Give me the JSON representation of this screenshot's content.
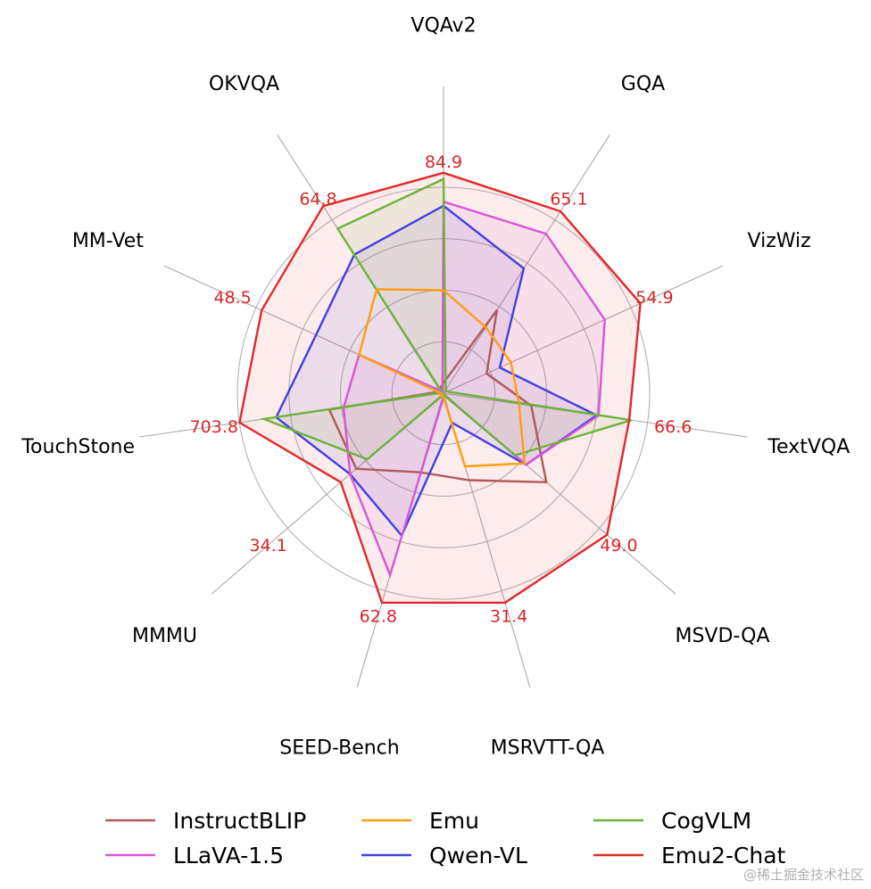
{
  "chart_data": {
    "type": "radar",
    "axes": [
      "VQAv2",
      "GQA",
      "VizWiz",
      "TextVQA",
      "MSVD-QA",
      "MSRVTT-QA",
      "SEED-Bench",
      "MMMU",
      "TouchStone",
      "MM-Vet",
      "OKVQA"
    ],
    "max_labels": [
      "84.9",
      "65.1",
      "54.9",
      "66.6",
      "49.0",
      "31.4",
      "62.8",
      "34.1",
      "703.8",
      "48.5",
      "64.8"
    ],
    "rings": [
      0.25,
      0.5,
      0.75,
      1.0
    ],
    "series": [
      {
        "name": "InstructBLIP",
        "color": "#b05a5a",
        "fill": false,
        "values": [
          0.05,
          0.48,
          0.23,
          0.43,
          0.66,
          0.44,
          0.4,
          0.56,
          0.56,
          0.02,
          0.03
        ]
      },
      {
        "name": "Qwen-VL",
        "color": "#4040e0",
        "fill": true,
        "values": [
          0.91,
          0.72,
          0.3,
          0.75,
          0.53,
          0.15,
          0.72,
          0.6,
          0.82,
          0.68,
          0.8
        ]
      },
      {
        "name": "LLaVA-1.5",
        "color": "#d855d8",
        "fill": true,
        "values": [
          0.93,
          0.92,
          0.86,
          0.76,
          0.53,
          0.01,
          0.92,
          0.6,
          0.49,
          0.45,
          0.01
        ]
      },
      {
        "name": "CogVLM",
        "color": "#6bb33a",
        "fill": true,
        "values": [
          1.04,
          0.02,
          0.02,
          0.92,
          0.46,
          0.01,
          0.01,
          0.49,
          0.88,
          0.01,
          0.95
        ]
      },
      {
        "name": "Emu",
        "color": "#ff9e10",
        "fill": false,
        "values": [
          0.5,
          0.38,
          0.36,
          0.37,
          0.52,
          0.37,
          0.01,
          0.02,
          0.01,
          0.45,
          0.6
        ]
      },
      {
        "name": "Emu2-Chat",
        "color": "#e02a2a",
        "fill": true,
        "values": [
          1.07,
          1.05,
          1.05,
          0.91,
          1.05,
          1.06,
          1.06,
          0.66,
          1.0,
          0.97,
          1.08
        ]
      }
    ],
    "legend_order": [
      "InstructBLIP",
      "LLaVA-1.5",
      "Emu",
      "Qwen-VL",
      "CogVLM",
      "Emu2-Chat"
    ],
    "legend_position": "bottom",
    "grid": true
  },
  "watermark": "@稀土掘金技术社区"
}
